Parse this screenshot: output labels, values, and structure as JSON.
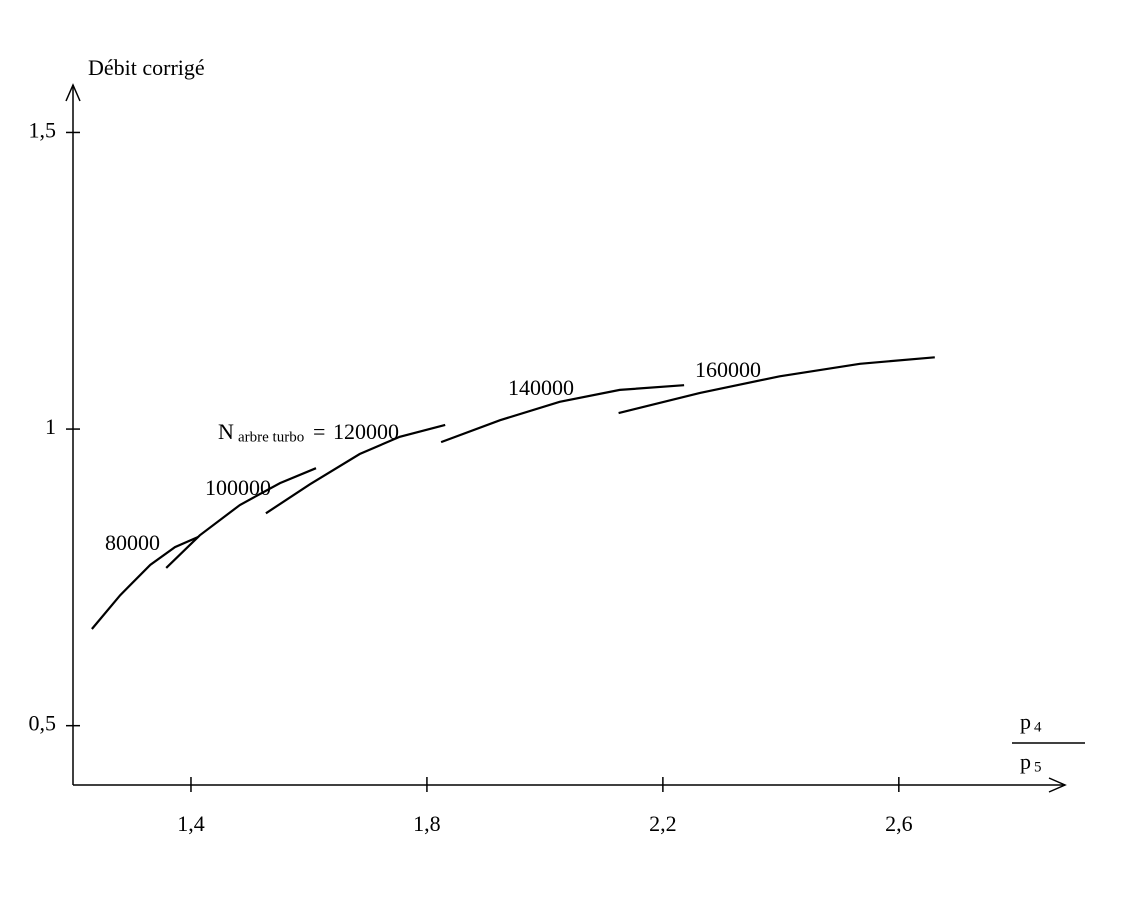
{
  "chart_data": {
    "type": "line",
    "y_label": "Débit corrigé",
    "x_label": {
      "numerator": "p",
      "numerator_sub": "4",
      "denominator": "p",
      "denominator_sub": "5"
    },
    "annotation": {
      "symbol": "N",
      "subscript": "arbre turbo",
      "equals": "="
    },
    "xlim": [
      1.2,
      2.88
    ],
    "ylim": [
      0.4,
      1.58
    ],
    "xticks": [
      {
        "value": 1.4,
        "label": "1,4"
      },
      {
        "value": 1.8,
        "label": "1,8"
      },
      {
        "value": 2.2,
        "label": "2,2"
      },
      {
        "value": 2.6,
        "label": "2,6"
      }
    ],
    "yticks": [
      {
        "value": 0.5,
        "label": "0,5"
      },
      1,
      {
        "value": 1.5,
        "label": "1,5"
      }
    ],
    "grid": false,
    "series": [
      {
        "name": "80000",
        "color": "#000000",
        "x": [
          1.232,
          1.28,
          1.331,
          1.373,
          1.412
        ],
        "values": [
          0.663,
          0.72,
          0.771,
          0.801,
          0.818
        ]
      },
      {
        "name": "100000",
        "color": "#000000",
        "x": [
          1.358,
          1.415,
          1.483,
          1.551,
          1.612
        ],
        "values": [
          0.766,
          0.821,
          0.872,
          0.909,
          0.934
        ]
      },
      {
        "name": "120000",
        "color": "#000000",
        "x": [
          1.527,
          1.602,
          1.686,
          1.754,
          1.831
        ],
        "values": [
          0.858,
          0.907,
          0.958,
          0.987,
          1.007
        ]
      },
      {
        "name": "140000",
        "color": "#000000",
        "x": [
          1.824,
          1.924,
          2.025,
          2.127,
          2.236
        ],
        "values": [
          0.978,
          1.015,
          1.046,
          1.066,
          1.074
        ]
      },
      {
        "name": "160000",
        "color": "#000000",
        "x": [
          2.125,
          2.263,
          2.398,
          2.534,
          2.661
        ],
        "values": [
          1.027,
          1.061,
          1.089,
          1.11,
          1.121
        ]
      }
    ]
  }
}
